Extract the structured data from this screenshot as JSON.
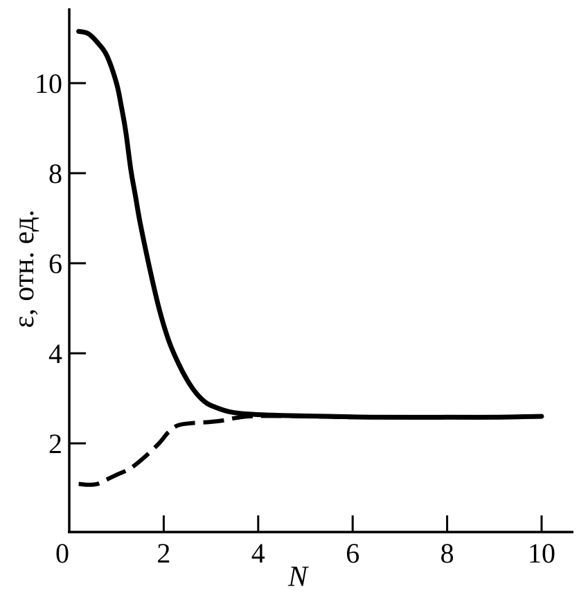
{
  "chart_data": {
    "type": "line",
    "xlabel": "N",
    "ylabel": "ε, отн. ед.",
    "xlim": [
      0,
      10.7
    ],
    "ylim": [
      0,
      11.9
    ],
    "x_ticks": [
      0,
      2,
      4,
      6,
      8,
      10
    ],
    "x_tick_labels": [
      "0",
      "2",
      "4",
      "6",
      "8",
      "10"
    ],
    "y_ticks": [
      2,
      4,
      6,
      8,
      10
    ],
    "y_tick_labels": [
      "2",
      "4",
      "6",
      "8",
      "10"
    ],
    "grid": false,
    "series": [
      {
        "style": "solid",
        "x": [
          0.2,
          0.4,
          0.6,
          0.8,
          1.0,
          1.1,
          1.2,
          1.3,
          1.4,
          1.5,
          1.7,
          1.9,
          2.1,
          2.3,
          2.5,
          2.7,
          2.9,
          3.1,
          3.4,
          3.8,
          4.5,
          5.5,
          6.5,
          8.0,
          9.0,
          10.0
        ],
        "y": [
          11.15,
          11.1,
          10.9,
          10.6,
          10.0,
          9.5,
          8.9,
          8.1,
          7.5,
          6.9,
          5.9,
          5.0,
          4.3,
          3.8,
          3.4,
          3.1,
          2.9,
          2.8,
          2.7,
          2.65,
          2.62,
          2.6,
          2.58,
          2.58,
          2.58,
          2.6
        ]
      },
      {
        "style": "dashed",
        "x": [
          0.2,
          0.4,
          0.6,
          0.8,
          1.0,
          1.3,
          1.6,
          1.9,
          2.1,
          2.3,
          2.6,
          2.9,
          3.2,
          3.5,
          3.8,
          4.2,
          5.0,
          6.0,
          7.0,
          8.0,
          9.0,
          10.0
        ],
        "y": [
          1.1,
          1.08,
          1.1,
          1.2,
          1.3,
          1.45,
          1.7,
          2.0,
          2.25,
          2.4,
          2.45,
          2.47,
          2.5,
          2.56,
          2.6,
          2.61,
          2.6,
          2.58,
          2.58,
          2.58,
          2.58,
          2.6
        ]
      }
    ]
  }
}
